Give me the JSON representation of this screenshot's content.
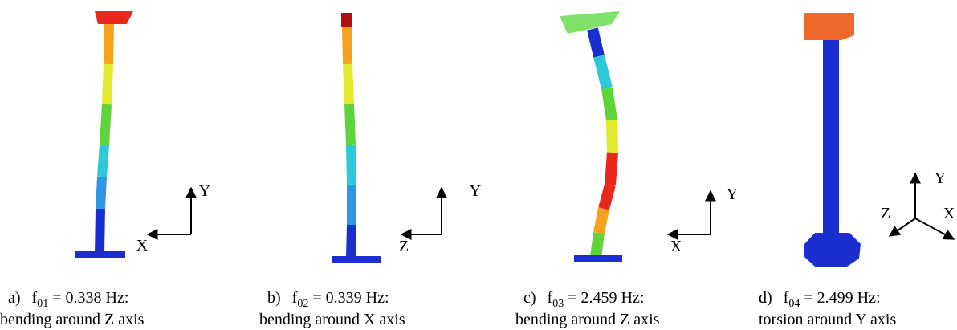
{
  "panels": [
    {
      "label": "a)",
      "symbol": "f",
      "sub": "01",
      "value": "= 0.338 Hz:",
      "description": "bending around Z axis",
      "axes": [
        "Y",
        "X"
      ]
    },
    {
      "label": "b)",
      "symbol": "f",
      "sub": "02",
      "value": "= 0.339 Hz:",
      "description": "bending around X axis",
      "axes": [
        "Y",
        "Z"
      ]
    },
    {
      "label": "c)",
      "symbol": "f",
      "sub": "03",
      "value": "= 2.459 Hz:",
      "description": "bending around Z axis",
      "axes": [
        "Y",
        "X"
      ]
    },
    {
      "label": "d)",
      "symbol": "f",
      "sub": "04",
      "value": "= 2.499 Hz:",
      "description": "torsion around Y axis",
      "axes": [
        "Y",
        "Z",
        "X"
      ]
    }
  ]
}
